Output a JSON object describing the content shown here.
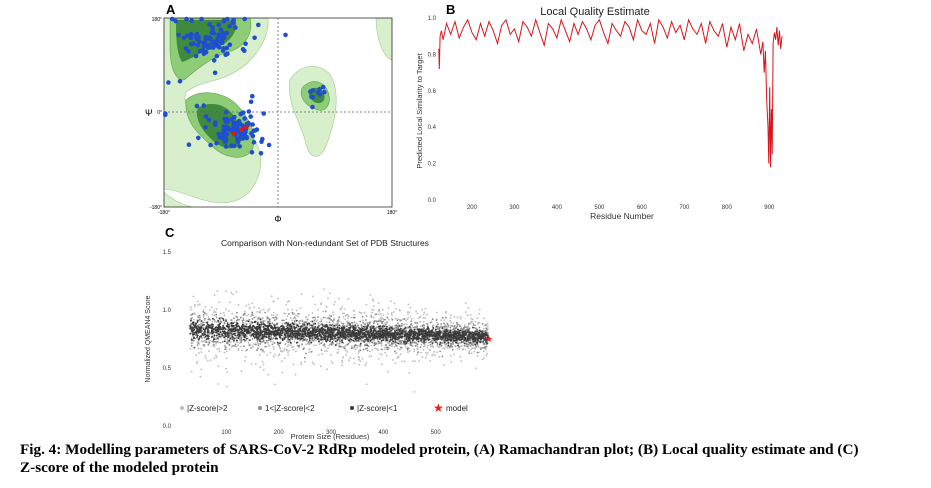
{
  "colors": {
    "rama_outer": "#d8efcc",
    "rama_mid": "#8fcc78",
    "rama_inner": "#3f8a3e",
    "rama_point": "#1f4fd0",
    "rama_glycine_point": "#e01818",
    "quality_line": "#d9141c",
    "zscore_light": "#bdbdbd",
    "zscore_mid": "#8a8a8a",
    "zscore_dark": "#3b3b3b",
    "model_star": "#e52421"
  },
  "panel_a": {
    "label": "A",
    "xlabel": "Φ",
    "ylabel": "Ψ",
    "x_ticks": [
      "-180°",
      "180°"
    ],
    "y_ticks": [
      "180°",
      "0°",
      "-180°"
    ]
  },
  "panel_b": {
    "label": "B"
  },
  "panel_c": {
    "label": "C"
  },
  "caption": {
    "line1": "Fig. 4: Modelling parameters of SARS-CoV-2 RdRp modeled protein, (A) Ramachandran plot; (B) Local quality estimate and (C)",
    "line2": "Z-score of the modeled protein"
  },
  "chart_data": [
    {
      "panel": "A",
      "type": "scatter",
      "xlabel": "Φ",
      "ylabel": "Ψ",
      "xlim": [
        -180,
        180
      ],
      "ylim": [
        -180,
        180
      ],
      "reference_lines": {
        "x": 0,
        "y": 0
      },
      "point_clusters": [
        {
          "name": "beta",
          "center": [
            -105,
            140
          ],
          "spread": [
            30,
            20
          ],
          "count": 85
        },
        {
          "name": "alpha-right",
          "center": [
            -65,
            -35
          ],
          "spread": [
            22,
            18
          ],
          "count": 95
        },
        {
          "name": "left-handed",
          "center": [
            60,
            40
          ],
          "spread": [
            8,
            12
          ],
          "count": 10
        },
        {
          "name": "scattered",
          "center": [
            -120,
            40
          ],
          "spread": [
            45,
            60
          ],
          "count": 18
        }
      ]
    },
    {
      "panel": "B",
      "type": "line",
      "title": "Local Quality Estimate",
      "xlabel": "Residue Number",
      "ylabel": "Predicted Local Similarity to Target",
      "xlim": [
        120,
        930
      ],
      "ylim": [
        0.0,
        1.0
      ],
      "x_ticks": [
        200,
        300,
        400,
        500,
        600,
        700,
        800,
        900
      ],
      "y_ticks": [
        "0.0",
        "0.2",
        "0.4",
        "0.6",
        "0.8",
        "1.0"
      ],
      "series": [
        {
          "x": [
            122,
            123,
            125,
            128,
            132,
            140,
            150,
            160,
            170,
            180,
            190,
            200,
            210,
            220,
            230,
            240,
            250,
            260,
            270,
            280,
            290,
            300,
            310,
            320,
            330,
            340,
            350,
            360,
            370,
            380,
            390,
            400,
            410,
            420,
            430,
            440,
            450,
            460,
            470,
            480,
            490,
            500,
            510,
            520,
            530,
            540,
            550,
            560,
            570,
            580,
            590,
            600,
            610,
            620,
            630,
            640,
            650,
            660,
            670,
            680,
            690,
            700,
            710,
            720,
            730,
            740,
            750,
            760,
            770,
            780,
            790,
            800,
            810,
            820,
            830,
            840,
            850,
            860,
            870,
            880,
            885,
            888,
            891,
            894,
            897,
            899,
            901,
            903,
            905,
            907,
            909,
            912,
            915,
            918,
            921,
            924,
            927,
            930
          ],
          "y": [
            0.83,
            0.72,
            0.9,
            0.93,
            0.88,
            0.97,
            0.91,
            0.98,
            0.89,
            0.95,
            0.99,
            0.92,
            0.88,
            0.97,
            0.9,
            0.98,
            0.93,
            0.86,
            0.96,
            0.99,
            0.91,
            0.94,
            0.87,
            0.98,
            0.95,
            0.9,
            0.99,
            0.92,
            0.85,
            0.97,
            0.94,
            0.89,
            0.99,
            0.93,
            0.87,
            0.97,
            0.91,
            0.98,
            0.94,
            0.88,
            0.96,
            0.99,
            0.92,
            0.86,
            0.97,
            0.93,
            0.9,
            0.98,
            0.95,
            0.88,
            0.99,
            0.93,
            0.91,
            0.97,
            0.86,
            0.99,
            0.95,
            0.89,
            0.98,
            0.92,
            0.96,
            0.88,
            0.99,
            0.94,
            0.91,
            0.97,
            0.86,
            0.98,
            0.93,
            0.9,
            0.97,
            0.84,
            0.95,
            0.88,
            0.97,
            0.82,
            0.91,
            0.86,
            0.94,
            0.8,
            0.87,
            0.7,
            0.82,
            0.55,
            0.4,
            0.2,
            0.62,
            0.18,
            0.5,
            0.25,
            0.86,
            0.92,
            0.88,
            0.95,
            0.85,
            0.93,
            0.83,
            0.9
          ]
        }
      ]
    },
    {
      "panel": "C",
      "type": "scatter",
      "title": "Comparison with Non-redundant Set of PDB Structures",
      "xlabel": "Protein Size (Residues)",
      "ylabel": "Normalized QMEAN4 Score",
      "xlim": [
        0,
        600
      ],
      "ylim": [
        0.0,
        1.5
      ],
      "x_ticks": [
        100,
        200,
        300,
        400,
        500
      ],
      "y_ticks": [
        "0.0",
        "0.5",
        "1.0",
        "1.5"
      ],
      "trend": {
        "x": [
          30,
          600
        ],
        "y": [
          0.83,
          0.77
        ]
      },
      "legend": [
        "|Z-score|>2",
        "1<|Z-score|<2",
        "|Z-score|<1",
        "model"
      ],
      "legend_position": "bottom",
      "series": [
        {
          "name": "|Z-score|>2",
          "band": 0.2
        },
        {
          "name": "1<|Z-score|<2",
          "band": 0.1
        },
        {
          "name": "|Z-score|<1",
          "band": 0.05
        },
        {
          "name": "model",
          "x": 932,
          "y": 0.76
        }
      ]
    }
  ]
}
